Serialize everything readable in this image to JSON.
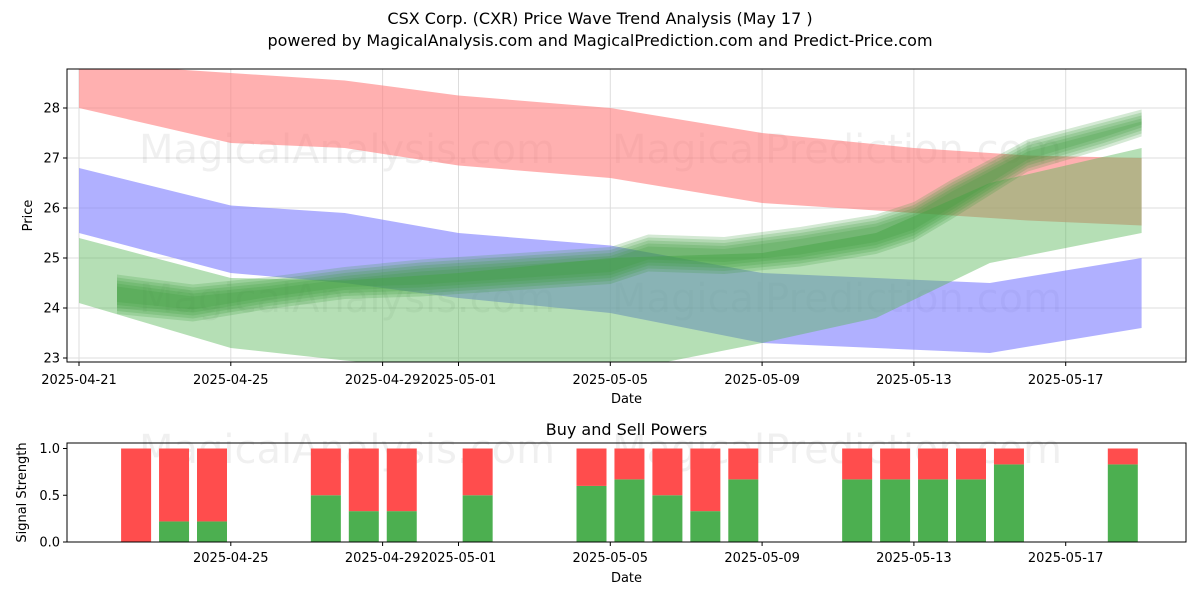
{
  "title": "CSX Corp. (CXR) Price Wave Trend Analysis (May 17 )",
  "subtitle": "powered by MagicalAnalysis.com and MagicalPrediction.com and Predict-Price.com",
  "watermarks": [
    "MagicalAnalysis.com",
    "MagicalPrediction.com"
  ],
  "colors": {
    "red_band": "#ff7f7f",
    "blue_band": "#7f7fff",
    "green_band": "#5cb85c",
    "buy": "#4caf50",
    "sell": "#ff4d4d",
    "grid": "#dddddd"
  },
  "chart_data": [
    {
      "type": "area",
      "title": "",
      "xlabel": "Date",
      "ylabel": "Price",
      "x_ticks": [
        "2025-04-21",
        "2025-04-25",
        "2025-04-29",
        "2025-05-01",
        "2025-05-05",
        "2025-05-09",
        "2025-05-13",
        "2025-05-17"
      ],
      "y_ticks": [
        23,
        24,
        25,
        26,
        27,
        28
      ],
      "ylim": [
        22.9,
        28.8
      ],
      "xlim": [
        "2025-04-21",
        "2025-05-20"
      ],
      "grid": true,
      "series": [
        {
          "color": "red",
          "x": [
            "2025-04-21",
            "2025-04-25",
            "2025-04-28",
            "2025-05-01",
            "2025-05-05",
            "2025-05-09",
            "2025-05-13",
            "2025-05-16",
            "2025-05-19"
          ],
          "upper": [
            28.9,
            28.7,
            28.55,
            28.25,
            28.0,
            27.5,
            27.2,
            27.05,
            27.0
          ],
          "lower": [
            28.0,
            27.3,
            27.2,
            26.85,
            26.6,
            26.1,
            25.9,
            25.75,
            25.65
          ]
        },
        {
          "color": "blue",
          "x": [
            "2025-04-21",
            "2025-04-25",
            "2025-04-28",
            "2025-05-01",
            "2025-05-05",
            "2025-05-09",
            "2025-05-12",
            "2025-05-15",
            "2025-05-19"
          ],
          "upper": [
            26.8,
            26.05,
            25.9,
            25.5,
            25.25,
            24.7,
            24.6,
            24.5,
            25.0
          ],
          "lower": [
            25.5,
            24.7,
            24.5,
            24.2,
            23.9,
            23.3,
            23.2,
            23.1,
            23.6
          ]
        },
        {
          "color": "green",
          "x": [
            "2025-04-21",
            "2025-04-25",
            "2025-04-28",
            "2025-05-01",
            "2025-05-05",
            "2025-05-09",
            "2025-05-12",
            "2025-05-15",
            "2025-05-19"
          ],
          "upper": [
            25.4,
            24.6,
            24.55,
            24.7,
            25.0,
            25.1,
            25.5,
            26.5,
            27.2
          ],
          "lower": [
            24.1,
            23.2,
            22.95,
            22.75,
            22.7,
            23.3,
            23.8,
            24.9,
            25.5
          ]
        },
        {
          "color": "green-wave",
          "x": [
            "2025-04-22",
            "2025-04-24",
            "2025-04-26",
            "2025-04-28",
            "2025-04-30",
            "2025-05-02",
            "2025-05-04",
            "2025-05-05",
            "2025-05-06",
            "2025-05-08",
            "2025-05-10",
            "2025-05-12",
            "2025-05-13",
            "2025-05-14",
            "2025-05-16",
            "2025-05-18",
            "2025-05-19"
          ],
          "upper": [
            24.55,
            24.35,
            24.5,
            24.7,
            24.85,
            24.95,
            25.05,
            25.1,
            25.35,
            25.3,
            25.5,
            25.75,
            26.0,
            26.45,
            27.25,
            27.65,
            27.85
          ],
          "lower": [
            24.0,
            23.85,
            24.1,
            24.3,
            24.35,
            24.45,
            24.55,
            24.6,
            24.85,
            24.8,
            24.95,
            25.2,
            25.45,
            25.9,
            26.85,
            27.3,
            27.55
          ]
        }
      ]
    },
    {
      "type": "bar",
      "title": "Buy and Sell Powers",
      "xlabel": "Date",
      "ylabel": "Signal Strength",
      "x_ticks": [
        "2025-04-25",
        "2025-04-29",
        "2025-05-01",
        "2025-05-05",
        "2025-05-09",
        "2025-05-13",
        "2025-05-17"
      ],
      "y_ticks": [
        "0.0",
        "0.5",
        "1.0"
      ],
      "ylim": [
        0,
        1.05
      ],
      "categories": [
        "2025-04-22",
        "2025-04-23",
        "2025-04-24",
        "2025-04-27",
        "2025-04-28",
        "2025-04-29",
        "2025-05-01",
        "2025-05-04",
        "2025-05-05",
        "2025-05-06",
        "2025-05-07",
        "2025-05-08",
        "2025-05-11",
        "2025-05-12",
        "2025-05-13",
        "2025-05-14",
        "2025-05-15",
        "2025-05-18"
      ],
      "series": [
        {
          "name": "buy",
          "values": [
            0.0,
            0.22,
            0.22,
            0.5,
            0.33,
            0.33,
            0.5,
            0.6,
            0.67,
            0.5,
            0.33,
            0.67,
            0.67,
            0.67,
            0.67,
            0.67,
            0.83,
            0.83
          ]
        },
        {
          "name": "sell",
          "values": [
            1.0,
            0.78,
            0.78,
            0.5,
            0.67,
            0.67,
            0.5,
            0.4,
            0.33,
            0.5,
            0.67,
            0.33,
            0.33,
            0.33,
            0.33,
            0.33,
            0.17,
            0.17
          ]
        }
      ]
    }
  ]
}
